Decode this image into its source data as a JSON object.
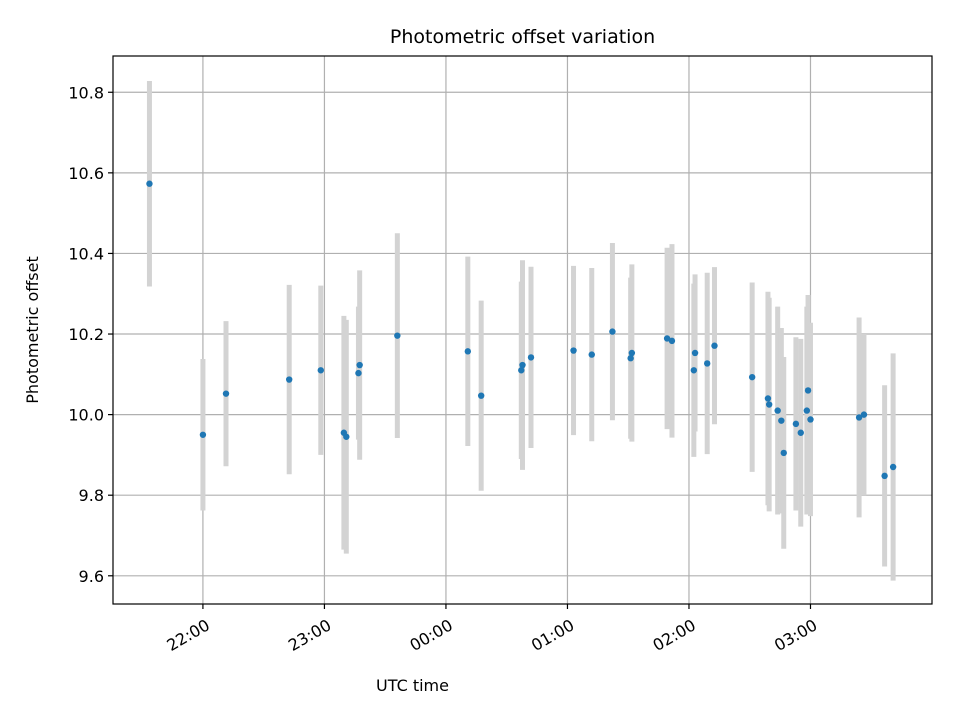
{
  "chart_data": {
    "type": "scatter",
    "title": "Photometric offset variation",
    "xlabel": "UTC time",
    "ylabel": "Photometric offset",
    "x_unit": "UTC time (hours after 00:00, negative = previous evening)",
    "xlim": [
      -2.74,
      4.0
    ],
    "ylim": [
      9.53,
      10.89
    ],
    "x_ticks": [
      {
        "value": -2,
        "label": "22:00"
      },
      {
        "value": -1,
        "label": "23:00"
      },
      {
        "value": 0,
        "label": "00:00"
      },
      {
        "value": 1,
        "label": "01:00"
      },
      {
        "value": 2,
        "label": "02:00"
      },
      {
        "value": 3,
        "label": "03:00"
      }
    ],
    "y_ticks": [
      9.6,
      9.8,
      10.0,
      10.2,
      10.4,
      10.6,
      10.8
    ],
    "grid": true,
    "colors": {
      "marker": "#1f77b4",
      "errorbar": "#d3d3d3",
      "grid": "#b0b0b0"
    },
    "series": [
      {
        "points": [
          {
            "x": -2.44,
            "y": 10.573,
            "err": 0.255
          },
          {
            "x": -2.0,
            "y": 9.95,
            "err": 0.188
          },
          {
            "x": -1.81,
            "y": 10.052,
            "err": 0.18
          },
          {
            "x": -1.29,
            "y": 10.087,
            "err": 0.235
          },
          {
            "x": -1.03,
            "y": 10.11,
            "err": 0.21
          },
          {
            "x": -0.84,
            "y": 9.955,
            "err": 0.29
          },
          {
            "x": -0.82,
            "y": 9.945,
            "err": 0.29
          },
          {
            "x": -0.72,
            "y": 10.103,
            "err": 0.165
          },
          {
            "x": -0.71,
            "y": 10.123,
            "err": 0.235
          },
          {
            "x": -0.4,
            "y": 10.196,
            "err": 0.254
          },
          {
            "x": 0.18,
            "y": 10.157,
            "err": 0.235
          },
          {
            "x": 0.29,
            "y": 10.047,
            "err": 0.236
          },
          {
            "x": 0.62,
            "y": 10.11,
            "err": 0.22
          },
          {
            "x": 0.63,
            "y": 10.123,
            "err": 0.26
          },
          {
            "x": 0.7,
            "y": 10.142,
            "err": 0.225
          },
          {
            "x": 1.05,
            "y": 10.159,
            "err": 0.21
          },
          {
            "x": 1.2,
            "y": 10.149,
            "err": 0.215
          },
          {
            "x": 1.37,
            "y": 10.206,
            "err": 0.22
          },
          {
            "x": 1.52,
            "y": 10.14,
            "err": 0.2
          },
          {
            "x": 1.53,
            "y": 10.153,
            "err": 0.22
          },
          {
            "x": 1.82,
            "y": 10.189,
            "err": 0.225
          },
          {
            "x": 1.86,
            "y": 10.183,
            "err": 0.24
          },
          {
            "x": 2.04,
            "y": 10.11,
            "err": 0.215
          },
          {
            "x": 2.05,
            "y": 10.153,
            "err": 0.195
          },
          {
            "x": 2.15,
            "y": 10.127,
            "err": 0.225
          },
          {
            "x": 2.21,
            "y": 10.171,
            "err": 0.195
          },
          {
            "x": 2.52,
            "y": 10.093,
            "err": 0.235
          },
          {
            "x": 2.65,
            "y": 10.04,
            "err": 0.265
          },
          {
            "x": 2.66,
            "y": 10.025,
            "err": 0.265
          },
          {
            "x": 2.73,
            "y": 10.01,
            "err": 0.258
          },
          {
            "x": 2.76,
            "y": 9.985,
            "err": 0.23
          },
          {
            "x": 2.78,
            "y": 9.905,
            "err": 0.238
          },
          {
            "x": 2.88,
            "y": 9.977,
            "err": 0.215
          },
          {
            "x": 2.92,
            "y": 9.955,
            "err": 0.233
          },
          {
            "x": 2.97,
            "y": 10.01,
            "err": 0.258
          },
          {
            "x": 2.98,
            "y": 10.06,
            "err": 0.237
          },
          {
            "x": 3.0,
            "y": 9.988,
            "err": 0.24
          },
          {
            "x": 3.4,
            "y": 9.993,
            "err": 0.248
          },
          {
            "x": 3.44,
            "y": 10.0,
            "err": 0.2
          },
          {
            "x": 3.61,
            "y": 9.848,
            "err": 0.225
          },
          {
            "x": 3.68,
            "y": 9.87,
            "err": 0.282
          }
        ]
      }
    ]
  }
}
